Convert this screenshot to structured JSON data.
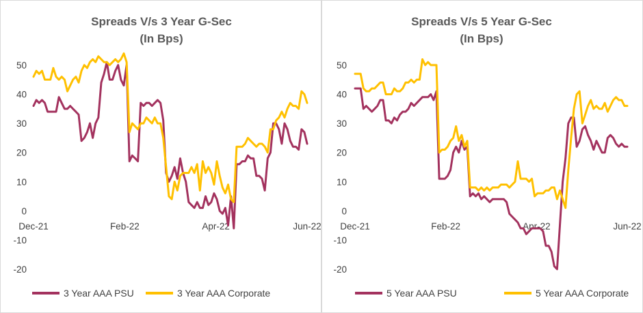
{
  "chart_data": [
    {
      "type": "line",
      "title": "Spreads V/s 3 Year G-Sec",
      "subtitle": "(In Bps)",
      "x_tick_labels": [
        "Dec-21",
        "Feb-22",
        "Apr-22",
        "Jun-22"
      ],
      "y_tick_labels": [
        "50",
        "40",
        "30",
        "20",
        "10",
        "0",
        "-10",
        "-20"
      ],
      "ylim": [
        -20,
        50
      ],
      "grid": false,
      "legend_position": "bottom",
      "series": [
        {
          "name": "3 Year AAA PSU",
          "color": "#a3325e",
          "values": [
            36,
            38,
            37,
            38,
            37,
            34,
            34,
            34,
            34,
            39,
            37,
            35,
            35,
            36,
            35,
            34,
            33,
            24,
            25,
            27,
            30,
            25,
            30,
            32,
            44,
            47,
            51,
            45,
            45,
            48,
            50,
            45,
            43,
            50,
            17,
            19,
            18,
            17,
            37,
            36,
            37,
            37,
            36,
            37,
            38,
            37,
            31,
            13,
            10,
            12,
            15,
            11,
            18,
            13,
            10,
            3,
            2,
            1,
            3,
            1,
            1,
            5,
            2,
            3,
            6,
            4,
            0,
            -1,
            1,
            -5,
            5,
            -6,
            16,
            16,
            17,
            17,
            19,
            18,
            18,
            12,
            12,
            11,
            7,
            18,
            20,
            30,
            30,
            28,
            23,
            30,
            28,
            24,
            22,
            22,
            21,
            28,
            27,
            23
          ],
          "x": [
            0,
            1,
            2,
            3,
            4,
            5,
            6,
            7,
            8,
            9,
            10,
            11,
            12,
            13,
            14,
            15,
            16,
            17,
            18,
            19,
            20,
            21,
            22,
            23,
            24,
            25,
            26,
            27,
            28,
            29,
            30,
            31,
            32,
            33,
            34,
            35,
            36,
            37,
            38,
            39,
            40,
            41,
            42,
            43,
            44,
            45,
            46,
            47,
            48,
            49,
            50,
            51,
            52,
            53,
            54,
            55,
            56,
            57,
            58,
            59,
            60,
            61,
            62,
            63,
            64,
            65,
            66,
            67,
            68,
            69,
            70,
            71,
            72,
            73,
            74,
            75,
            76,
            77,
            78,
            79,
            80,
            81,
            82,
            83,
            84,
            85,
            86,
            87,
            88,
            89,
            90,
            91,
            92,
            93,
            94,
            95,
            96,
            97
          ]
        },
        {
          "name": "3 Year AAA Corporate",
          "color": "#ffc000",
          "values": [
            46,
            48,
            47,
            48,
            45,
            45,
            45,
            49,
            46,
            45,
            46,
            45,
            41,
            43,
            45,
            46,
            44,
            48,
            50,
            49,
            51,
            52,
            51,
            53,
            52,
            51,
            51,
            50,
            51,
            52,
            51,
            52,
            54,
            51,
            27,
            30,
            29,
            28,
            30,
            30,
            32,
            31,
            30,
            32,
            30,
            30,
            25,
            15,
            5,
            4,
            10,
            7,
            12,
            13,
            13,
            13,
            15,
            13,
            16,
            7,
            17,
            13,
            15,
            13,
            9,
            17,
            12,
            8,
            6,
            9,
            4,
            3,
            22,
            22,
            22,
            23,
            25,
            24,
            23,
            22,
            23,
            23,
            22,
            20,
            28,
            28,
            31,
            32,
            34,
            32,
            35,
            37,
            36,
            36,
            35,
            41,
            40,
            37
          ],
          "x": [
            0,
            1,
            2,
            3,
            4,
            5,
            6,
            7,
            8,
            9,
            10,
            11,
            12,
            13,
            14,
            15,
            16,
            17,
            18,
            19,
            20,
            21,
            22,
            23,
            24,
            25,
            26,
            27,
            28,
            29,
            30,
            31,
            32,
            33,
            34,
            35,
            36,
            37,
            38,
            39,
            40,
            41,
            42,
            43,
            44,
            45,
            46,
            47,
            48,
            49,
            50,
            51,
            52,
            53,
            54,
            55,
            56,
            57,
            58,
            59,
            60,
            61,
            62,
            63,
            64,
            65,
            66,
            67,
            68,
            69,
            70,
            71,
            72,
            73,
            74,
            75,
            76,
            77,
            78,
            79,
            80,
            81,
            82,
            83,
            84,
            85,
            86,
            87,
            88,
            89,
            90,
            91,
            92,
            93,
            94,
            95,
            96,
            97
          ]
        }
      ]
    },
    {
      "type": "line",
      "title": "Spreads V/s 5 Year G-Sec",
      "subtitle": "(In Bps)",
      "x_tick_labels": [
        "Dec-21",
        "Feb-22",
        "Apr-22",
        "Jun-22"
      ],
      "y_tick_labels": [
        "50",
        "40",
        "30",
        "20",
        "10",
        "0",
        "-10",
        "-20"
      ],
      "ylim": [
        -20,
        50
      ],
      "grid": false,
      "legend_position": "bottom",
      "series": [
        {
          "name": "5 Year AAA PSU",
          "color": "#a3325e",
          "values": [
            42,
            42,
            42,
            35,
            36,
            35,
            34,
            35,
            36,
            38,
            38,
            31,
            31,
            30,
            32,
            31,
            33,
            34,
            34,
            35,
            37,
            36,
            37,
            38,
            39,
            39,
            39,
            40,
            38,
            41,
            11,
            11,
            11,
            12,
            14,
            20,
            22,
            20,
            24,
            21,
            22,
            5,
            6,
            5,
            6,
            4,
            5,
            4,
            3,
            4,
            4,
            4,
            4,
            4,
            3,
            -1,
            -2,
            -3,
            -4,
            -6,
            -6,
            -8,
            -7,
            -6,
            -6,
            -6,
            -6,
            -7,
            -12,
            -12,
            -14,
            -19,
            -20,
            -5,
            10,
            18,
            30,
            32,
            32,
            22,
            24,
            28,
            29,
            26,
            24,
            21,
            24,
            22,
            20,
            20,
            25,
            26,
            25,
            23,
            22,
            23,
            22,
            22
          ],
          "x": [
            0,
            1,
            2,
            3,
            4,
            5,
            6,
            7,
            8,
            9,
            10,
            11,
            12,
            13,
            14,
            15,
            16,
            17,
            18,
            19,
            20,
            21,
            22,
            23,
            24,
            25,
            26,
            27,
            28,
            29,
            30,
            31,
            32,
            33,
            34,
            35,
            36,
            37,
            38,
            39,
            40,
            41,
            42,
            43,
            44,
            45,
            46,
            47,
            48,
            49,
            50,
            51,
            52,
            53,
            54,
            55,
            56,
            57,
            58,
            59,
            60,
            61,
            62,
            63,
            64,
            65,
            66,
            67,
            68,
            69,
            70,
            71,
            72,
            73,
            74,
            75,
            76,
            77,
            78,
            79,
            80,
            81,
            82,
            83,
            84,
            85,
            86,
            87,
            88,
            89,
            90,
            91,
            92,
            93,
            94,
            95,
            96,
            97
          ]
        },
        {
          "name": "5 Year AAA Corporate",
          "color": "#ffc000",
          "values": [
            47,
            47,
            47,
            42,
            41,
            41,
            42,
            42,
            43,
            44,
            44,
            40,
            40,
            40,
            42,
            41,
            41,
            42,
            44,
            44,
            45,
            44,
            45,
            45,
            52,
            50,
            51,
            50,
            50,
            50,
            20,
            21,
            21,
            22,
            24,
            25,
            29,
            24,
            26,
            22,
            24,
            8,
            8,
            8,
            7,
            8,
            7,
            8,
            7,
            8,
            8,
            8,
            9,
            9,
            9,
            8,
            9,
            10,
            17,
            11,
            11,
            11,
            10,
            11,
            5,
            6,
            6,
            6,
            7,
            7,
            8,
            8,
            4,
            7,
            4,
            1,
            14,
            25,
            35,
            40,
            41,
            30,
            33,
            36,
            38,
            35,
            36,
            35,
            35,
            37,
            34,
            36,
            38,
            39,
            38,
            38,
            36,
            36
          ],
          "x": [
            0,
            1,
            2,
            3,
            4,
            5,
            6,
            7,
            8,
            9,
            10,
            11,
            12,
            13,
            14,
            15,
            16,
            17,
            18,
            19,
            20,
            21,
            22,
            23,
            24,
            25,
            26,
            27,
            28,
            29,
            30,
            31,
            32,
            33,
            34,
            35,
            36,
            37,
            38,
            39,
            40,
            41,
            42,
            43,
            44,
            45,
            46,
            47,
            48,
            49,
            50,
            51,
            52,
            53,
            54,
            55,
            56,
            57,
            58,
            59,
            60,
            61,
            62,
            63,
            64,
            65,
            66,
            67,
            68,
            69,
            70,
            71,
            72,
            73,
            74,
            75,
            76,
            77,
            78,
            79,
            80,
            81,
            82,
            83,
            84,
            85,
            86,
            87,
            88,
            89,
            90,
            91,
            92,
            93,
            94,
            95,
            96,
            97
          ]
        }
      ]
    }
  ]
}
